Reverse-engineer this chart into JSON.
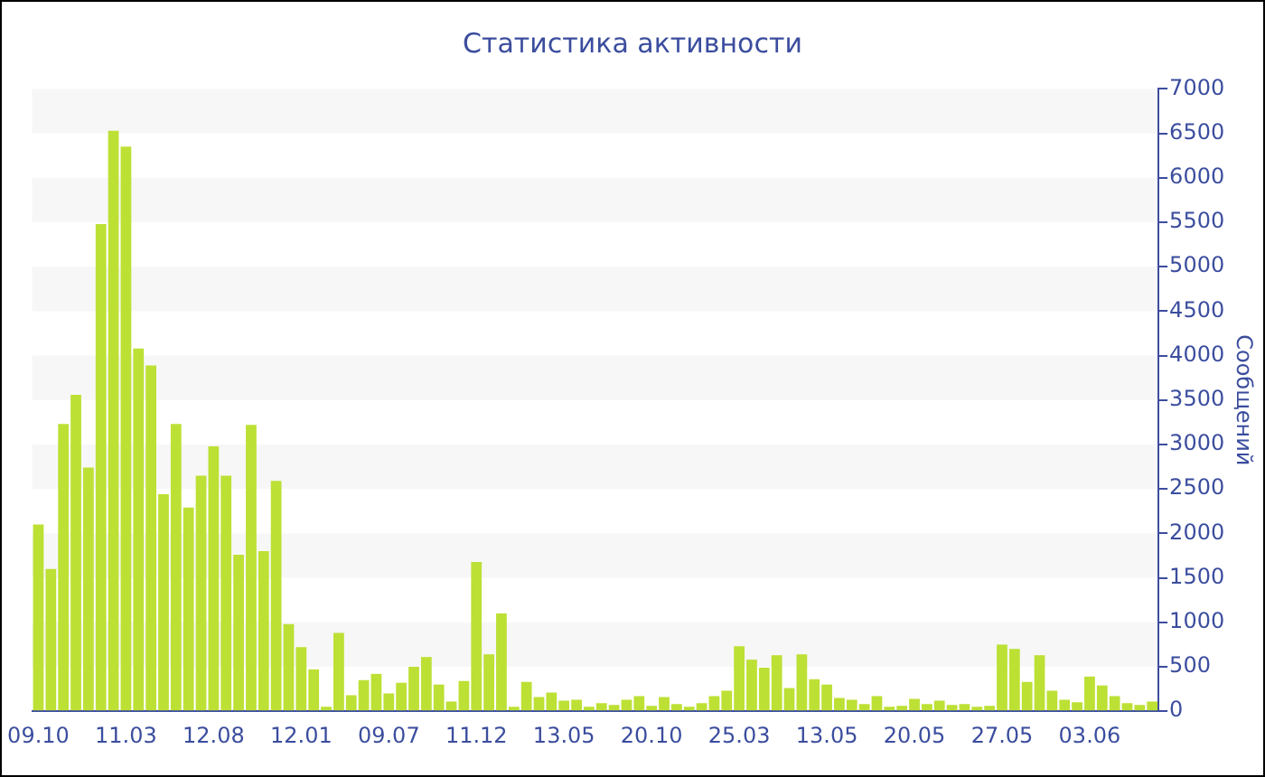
{
  "chart_data": {
    "type": "bar",
    "title": "Статистика активности",
    "ylabel": "Сообщений",
    "categories": [
      "09.10",
      null,
      null,
      null,
      null,
      null,
      null,
      "11.03",
      null,
      null,
      null,
      null,
      null,
      null,
      "12.08",
      null,
      null,
      null,
      null,
      null,
      null,
      "12.01",
      null,
      null,
      null,
      null,
      null,
      null,
      "09.07",
      null,
      null,
      null,
      null,
      null,
      null,
      "11.12",
      null,
      null,
      null,
      null,
      null,
      null,
      "13.05",
      null,
      null,
      null,
      null,
      null,
      null,
      "20.10",
      null,
      null,
      null,
      null,
      null,
      null,
      "25.03",
      null,
      null,
      null,
      null,
      null,
      null,
      "13.05",
      null,
      null,
      null,
      null,
      null,
      null,
      "20.05",
      null,
      null,
      null,
      null,
      null,
      null,
      "27.05",
      null,
      null,
      null,
      null,
      null,
      null,
      "03.06",
      null,
      null,
      null,
      null,
      null
    ],
    "series": [
      {
        "color": "#bde035",
        "values": [
          2100,
          1600,
          3230,
          3560,
          2740,
          5480,
          6530,
          6350,
          4080,
          3890,
          2440,
          3230,
          2290,
          2650,
          2980,
          2650,
          1760,
          3220,
          1800,
          2590,
          980,
          720,
          470,
          50,
          880,
          180,
          350,
          420,
          200,
          320,
          500,
          610,
          300,
          110,
          340,
          1680,
          640,
          1100,
          50,
          330,
          160,
          210,
          120,
          130,
          50,
          90,
          70,
          130,
          170,
          60,
          160,
          80,
          50,
          90,
          170,
          230,
          730,
          580,
          490,
          630,
          260,
          640,
          360,
          300,
          150,
          130,
          80,
          170,
          50,
          60,
          140,
          80,
          120,
          70,
          80,
          50,
          60,
          750,
          700,
          330,
          630,
          230,
          130,
          100,
          390,
          290,
          170,
          90,
          70,
          110
        ]
      }
    ],
    "ylim": [
      0,
      7000
    ],
    "yticks": [
      0,
      500,
      1000,
      1500,
      2000,
      2500,
      3000,
      3500,
      4000,
      4500,
      5000,
      5500,
      6000,
      6500,
      7000
    ],
    "bands": [
      {
        "axis": "y",
        "from": 500,
        "to": 1000,
        "color": "#f7f7f7"
      },
      {
        "axis": "y",
        "from": 1500,
        "to": 2000,
        "color": "#f7f7f7"
      },
      {
        "axis": "y",
        "from": 2500,
        "to": 3000,
        "color": "#f7f7f7"
      },
      {
        "axis": "y",
        "from": 3500,
        "to": 4000,
        "color": "#f7f7f7"
      },
      {
        "axis": "y",
        "from": 4500,
        "to": 5000,
        "color": "#f7f7f7"
      },
      {
        "axis": "y",
        "from": 5500,
        "to": 6000,
        "color": "#f7f7f7"
      },
      {
        "axis": "y",
        "from": 6500,
        "to": 7000,
        "color": "#f7f7f7"
      }
    ]
  }
}
